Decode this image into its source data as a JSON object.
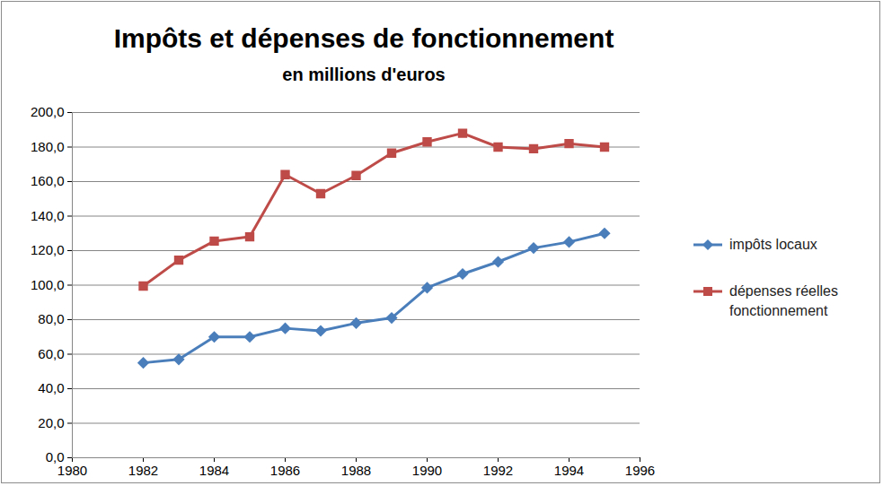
{
  "chart_data": {
    "type": "line",
    "title": "Impôts et dépenses de fonctionnement",
    "subtitle": "en millions d'euros",
    "x": [
      1982,
      1983,
      1984,
      1985,
      1986,
      1987,
      1988,
      1989,
      1990,
      1991,
      1992,
      1993,
      1994,
      1995
    ],
    "series": [
      {
        "name": "impôts locaux",
        "color": "#4a7ebb",
        "marker": "diamond",
        "values": [
          55,
          57,
          70,
          70,
          75,
          73.5,
          78,
          81,
          98.5,
          106.5,
          113.5,
          121.5,
          125,
          130
        ]
      },
      {
        "name": "dépenses réelles fonctionnement",
        "color": "#be4b48",
        "marker": "square",
        "values": [
          99.5,
          114.5,
          125.5,
          128,
          164,
          153,
          163.5,
          176.5,
          183,
          188,
          180,
          179,
          182,
          180
        ]
      }
    ],
    "xlim": [
      1980,
      1996
    ],
    "xticks": [
      1980,
      1982,
      1984,
      1986,
      1988,
      1990,
      1992,
      1994,
      1996
    ],
    "ylim": [
      0,
      200
    ],
    "yticks": [
      {
        "value": 0,
        "label": "0,0"
      },
      {
        "value": 20,
        "label": "20,0"
      },
      {
        "value": 40,
        "label": "40,0"
      },
      {
        "value": 60,
        "label": "60,0"
      },
      {
        "value": 80,
        "label": "80,0"
      },
      {
        "value": 100,
        "label": "100,0"
      },
      {
        "value": 120,
        "label": "120,0"
      },
      {
        "value": 140,
        "label": "140,0"
      },
      {
        "value": 160,
        "label": "160,0"
      },
      {
        "value": 180,
        "label": "180,0"
      },
      {
        "value": 200,
        "label": "200,0"
      }
    ],
    "grid": true,
    "legend": "right"
  }
}
